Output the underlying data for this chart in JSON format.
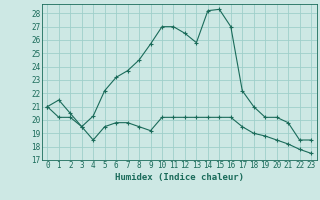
{
  "title": "",
  "xlabel": "Humidex (Indice chaleur)",
  "ylabel": "",
  "background_color": "#cde8e4",
  "line_color": "#1a6b5a",
  "grid_color": "#9fcfca",
  "xlim": [
    -0.5,
    23.5
  ],
  "ylim": [
    17,
    28.7
  ],
  "yticks": [
    17,
    18,
    19,
    20,
    21,
    22,
    23,
    24,
    25,
    26,
    27,
    28
  ],
  "xticks": [
    0,
    1,
    2,
    3,
    4,
    5,
    6,
    7,
    8,
    9,
    10,
    11,
    12,
    13,
    14,
    15,
    16,
    17,
    18,
    19,
    20,
    21,
    22,
    23
  ],
  "series1_x": [
    0,
    1,
    2,
    3,
    4,
    5,
    6,
    7,
    8,
    9,
    10,
    11,
    12,
    13,
    14,
    15,
    16,
    17,
    18,
    19,
    20,
    21,
    22,
    23
  ],
  "series1_y": [
    21.0,
    21.5,
    20.5,
    19.5,
    20.3,
    22.2,
    23.2,
    23.7,
    24.5,
    25.7,
    27.0,
    27.0,
    26.5,
    25.8,
    28.2,
    28.3,
    27.0,
    22.2,
    21.0,
    20.2,
    20.2,
    19.8,
    18.5,
    18.5
  ],
  "series2_x": [
    0,
    1,
    2,
    3,
    4,
    5,
    6,
    7,
    8,
    9,
    10,
    11,
    12,
    13,
    14,
    15,
    16,
    17,
    18,
    19,
    20,
    21,
    22,
    23
  ],
  "series2_y": [
    21.0,
    20.2,
    20.2,
    19.5,
    18.5,
    19.5,
    19.8,
    19.8,
    19.5,
    19.2,
    20.2,
    20.2,
    20.2,
    20.2,
    20.2,
    20.2,
    20.2,
    19.5,
    19.0,
    18.8,
    18.5,
    18.2,
    17.8,
    17.5
  ]
}
